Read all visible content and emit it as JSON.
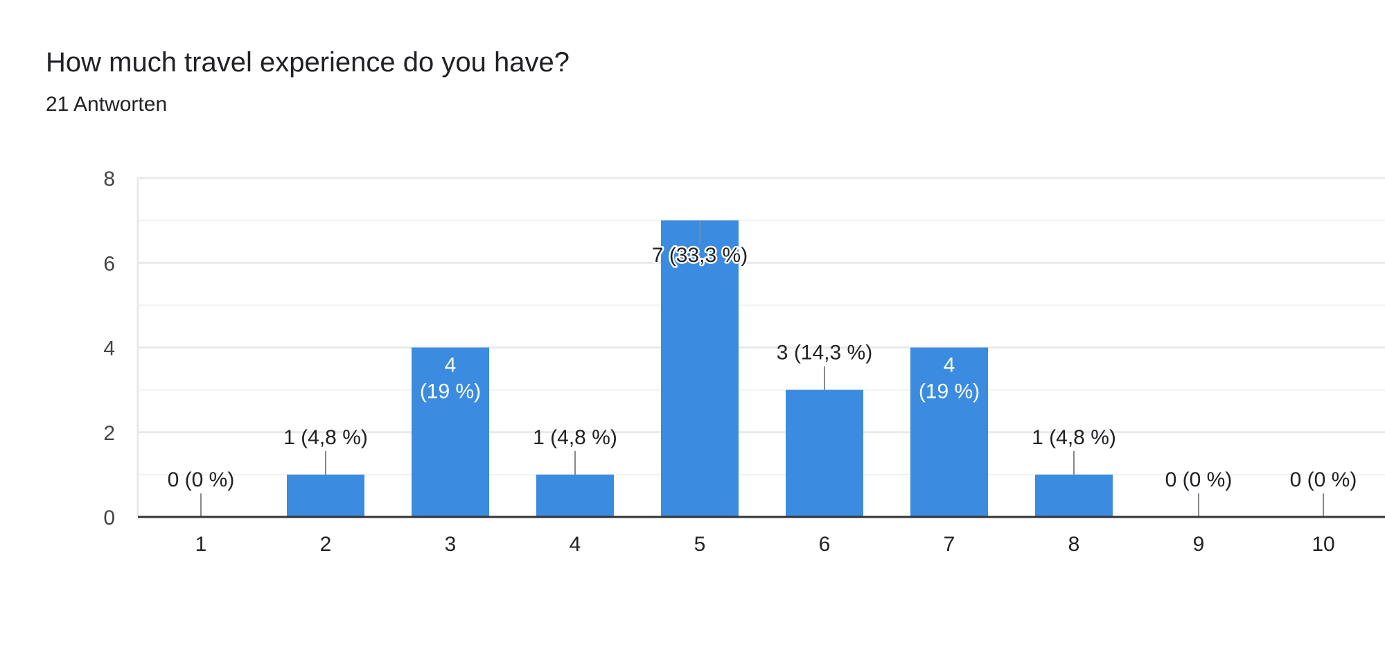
{
  "question": {
    "title": "How much travel experience do you have?",
    "responses": "21 Antworten"
  },
  "colors": {
    "bar": "#3b8ce0",
    "grid": "#e9e9e9",
    "axis": "#333333",
    "label": "#202124",
    "inside_label": "#ffffff",
    "tick_text": "#444444"
  },
  "chart_data": {
    "type": "bar",
    "title": "How much travel experience do you have?",
    "subtitle": "21 Antworten",
    "categories": [
      "1",
      "2",
      "3",
      "4",
      "5",
      "6",
      "7",
      "8",
      "9",
      "10"
    ],
    "values": [
      0,
      1,
      4,
      1,
      7,
      3,
      4,
      1,
      0,
      0
    ],
    "labels": [
      "0 (0 %)",
      "1 (4,8 %)",
      "4 (19 %)",
      "1 (4,8 %)",
      "7 (33,3 %)",
      "3 (14,3 %)",
      "4 (19 %)",
      "1 (4,8 %)",
      "0 (0 %)",
      "0 (0 %)"
    ],
    "inside_label_lines": [
      null,
      null,
      [
        "4",
        "(19 %)"
      ],
      null,
      null,
      null,
      [
        "4",
        "(19 %)"
      ],
      null,
      null,
      null
    ],
    "y_ticks": [
      0,
      2,
      4,
      6,
      8
    ],
    "ylim": [
      0,
      8
    ],
    "grid": true,
    "xlabel": "",
    "ylabel": ""
  }
}
